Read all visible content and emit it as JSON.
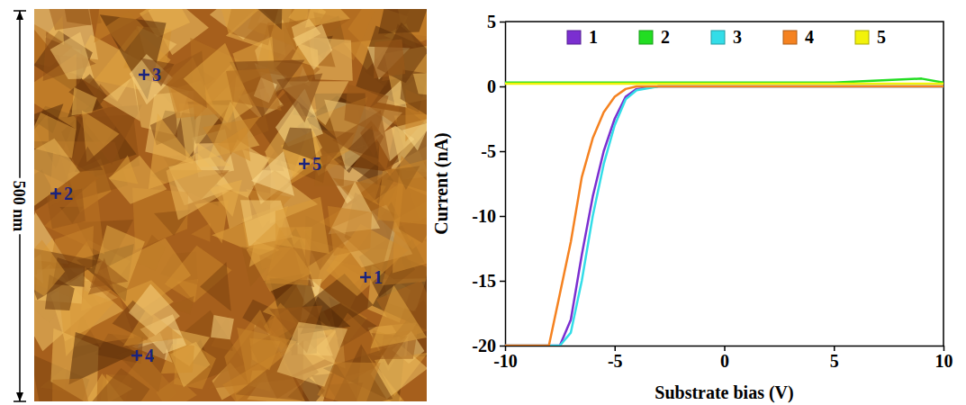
{
  "image": {
    "scale_bar_label": "500 nm",
    "point_labels": [
      "1",
      "2",
      "3",
      "4",
      "5"
    ]
  },
  "chart_data": {
    "type": "line",
    "x_label": "Substrate bias (V)",
    "y_label": "Current (nA)",
    "x": [
      -10,
      -9,
      -8,
      -7.5,
      -7,
      -6.5,
      -6,
      -5.5,
      -5,
      -4.5,
      -4,
      -3,
      0,
      5,
      9,
      10
    ],
    "series": [
      {
        "name": "1",
        "color": "#7b2fd0",
        "values": [
          -20,
          -20,
          -20,
          -20,
          -18,
          -13,
          -8.5,
          -5,
          -2.5,
          -0.8,
          -0.2,
          0,
          0,
          0,
          0,
          0
        ]
      },
      {
        "name": "2",
        "color": "#22dd22",
        "values": [
          0.3,
          0.3,
          0.3,
          0.3,
          0.3,
          0.3,
          0.3,
          0.3,
          0.3,
          0.3,
          0.3,
          0.3,
          0.3,
          0.3,
          0.6,
          0.3
        ]
      },
      {
        "name": "3",
        "color": "#33dde8",
        "values": [
          -20,
          -20,
          -20,
          -20,
          -19,
          -15,
          -10,
          -6,
          -3,
          -1,
          -0.3,
          0,
          0,
          0,
          0,
          0
        ]
      },
      {
        "name": "4",
        "color": "#f58220",
        "values": [
          -20,
          -20,
          -20,
          -16,
          -12,
          -7,
          -4,
          -2,
          -0.8,
          -0.2,
          0,
          0,
          0,
          0,
          0,
          0
        ]
      },
      {
        "name": "5",
        "color": "#f2f20a",
        "values": [
          0.2,
          0.2,
          0.2,
          0.2,
          0.2,
          0.2,
          0.2,
          0.2,
          0.2,
          0.2,
          0.2,
          0.2,
          0.2,
          0.2,
          0.2,
          0.2
        ]
      }
    ],
    "xlim": [
      -10,
      10
    ],
    "xticks": [
      -10,
      -5,
      0,
      5,
      10
    ],
    "ylim": [
      -20,
      5
    ],
    "yticks": [
      -20,
      -15,
      -10,
      -5,
      0,
      5
    ],
    "legend": "top"
  }
}
